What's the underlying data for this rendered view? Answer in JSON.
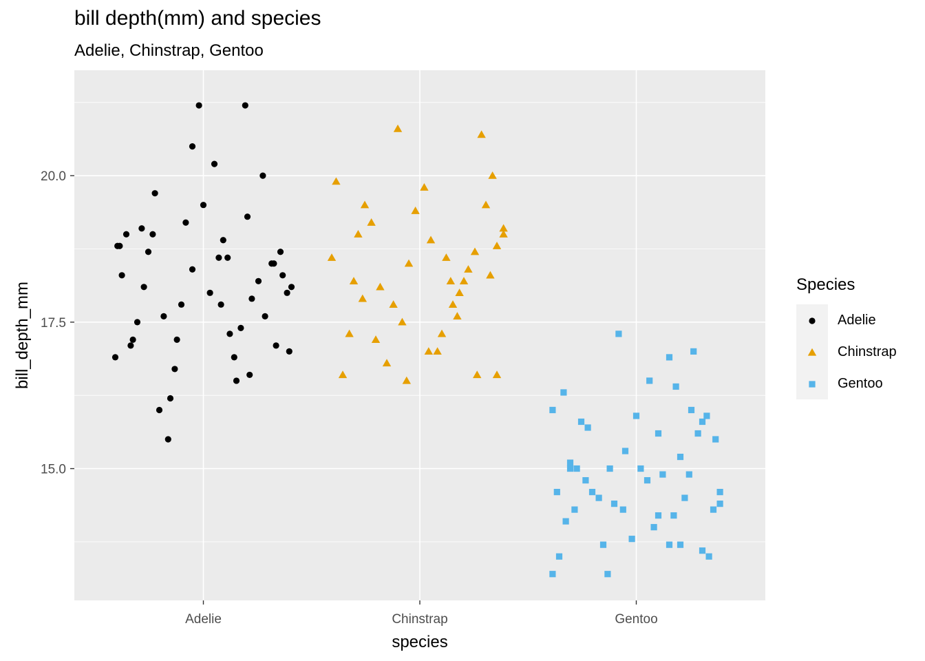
{
  "title": "bill depth(mm) and species",
  "subtitle": "Adelie, Chinstrap, Gentoo",
  "legend": {
    "title": "Species",
    "items": [
      {
        "label": "Adelie",
        "color": "#000000",
        "shape": "circle"
      },
      {
        "label": "Chinstrap",
        "color": "#E69F00",
        "shape": "triangle"
      },
      {
        "label": "Gentoo",
        "color": "#56B4E9",
        "shape": "square"
      }
    ]
  },
  "chart_data": {
    "type": "scatter",
    "title": "bill depth(mm) and species",
    "subtitle": "Adelie, Chinstrap, Gentoo",
    "xlabel": "species",
    "ylabel": "bill_depth_mm",
    "categories": [
      "Adelie",
      "Chinstrap",
      "Gentoo"
    ],
    "ylim": [
      12.75,
      21.8
    ],
    "yticks": [
      15.0,
      17.5,
      20.0
    ],
    "ytick_labels": [
      "15.0",
      "17.5",
      "20.0"
    ],
    "grid": true,
    "legend_position": "right",
    "series": [
      {
        "name": "Adelie",
        "color": "#000000",
        "shape": "circle",
        "jitter": [
          -0.38,
          -0.28,
          0.32,
          0.08,
          -0.05,
          0.2,
          -0.12,
          0.15,
          -0.33,
          0.4,
          -0.22,
          0.03,
          0.27,
          -0.18,
          0.11,
          -0.4,
          0.36,
          -0.08,
          0.22,
          -0.3,
          0.05,
          -0.15,
          0.31,
          -0.25,
          0.17,
          -0.02,
          0.39,
          -0.35,
          0.09,
          -0.2,
          0.25,
          -0.1,
          0.14,
          -0.37,
          0.33,
          0.0,
          -0.27,
          0.19,
          -0.13,
          0.38,
          -0.32,
          0.07,
          0.28,
          -0.23,
          0.12,
          -0.05,
          0.35,
          -0.39,
          0.21,
          -0.16
        ],
        "values": [
          18.8,
          19.1,
          18.5,
          17.8,
          18.4,
          19.3,
          17.2,
          16.5,
          17.1,
          18.1,
          19.7,
          18.0,
          20.0,
          17.6,
          18.6,
          16.9,
          18.3,
          19.2,
          17.9,
          17.5,
          20.2,
          16.2,
          18.5,
          18.7,
          17.4,
          21.2,
          17.0,
          19.0,
          18.9,
          16.0,
          18.2,
          17.8,
          16.9,
          18.3,
          17.1,
          19.5,
          18.1,
          21.2,
          16.7,
          18.0,
          17.2,
          18.6,
          17.6,
          19.0,
          17.3,
          20.5,
          18.7,
          18.8,
          16.6,
          15.5
        ]
      },
      {
        "name": "Chinstrap",
        "color": "#E69F00",
        "shape": "triangle",
        "jitter": [
          -0.38,
          -0.25,
          0.2,
          0.1,
          -0.05,
          0.33,
          -0.3,
          0.15,
          -0.15,
          0.38,
          -0.35,
          0.02,
          0.28,
          -0.2,
          0.12,
          -0.1,
          0.25,
          -0.32,
          0.35,
          0.05,
          -0.28,
          0.18,
          -0.08,
          0.3,
          -0.18,
          0.22,
          0.08,
          -0.22,
          -0.4,
          0.35,
          -0.12,
          0.14,
          0.26,
          -0.26,
          0.04,
          0.38,
          -0.06,
          -0.02,
          0.17,
          0.32
        ],
        "values": [
          19.9,
          19.5,
          18.2,
          17.3,
          18.5,
          20.0,
          18.2,
          17.8,
          16.8,
          19.1,
          16.6,
          19.8,
          20.7,
          17.2,
          18.6,
          20.8,
          18.7,
          17.3,
          16.6,
          18.9,
          19.0,
          18.0,
          17.5,
          19.5,
          18.1,
          18.4,
          17.0,
          19.2,
          18.6,
          18.8,
          17.8,
          18.2,
          16.6,
          17.9,
          17.0,
          19.0,
          16.5,
          19.4,
          17.6,
          18.3
        ]
      },
      {
        "name": "Gentoo",
        "color": "#56B4E9",
        "shape": "square",
        "jitter": [
          -0.38,
          -0.33,
          0.38,
          0.25,
          -0.15,
          0.1,
          -0.22,
          0.32,
          0.05,
          -0.28,
          0.18,
          -0.05,
          0.35,
          -0.35,
          0.12,
          0.28,
          -0.1,
          -0.3,
          0.2,
          0.0,
          -0.2,
          0.15,
          -0.25,
          0.3,
          0.08,
          -0.38,
          0.22,
          -0.12,
          0.36,
          0.02,
          -0.32,
          0.26,
          -0.17,
          0.1,
          0.33,
          -0.06,
          -0.27,
          0.24,
          0.15,
          -0.36,
          0.38,
          -0.02,
          0.2,
          -0.23,
          0.06,
          -0.13,
          0.3,
          -0.3,
          0.17,
          -0.08
        ],
        "values": [
          13.2,
          16.3,
          14.6,
          16.0,
          13.7,
          14.2,
          15.7,
          15.9,
          14.8,
          14.3,
          16.4,
          15.3,
          14.3,
          13.5,
          14.9,
          15.6,
          14.4,
          15.1,
          13.7,
          15.9,
          14.6,
          16.9,
          15.8,
          13.6,
          14.0,
          16.0,
          14.5,
          15.0,
          15.5,
          15.0,
          14.1,
          17.0,
          14.5,
          15.6,
          13.5,
          14.3,
          15.0,
          14.9,
          13.7,
          14.6,
          14.4,
          13.8,
          15.2,
          14.8,
          16.5,
          13.2,
          15.8,
          15.0,
          14.2,
          17.3
        ]
      }
    ]
  }
}
